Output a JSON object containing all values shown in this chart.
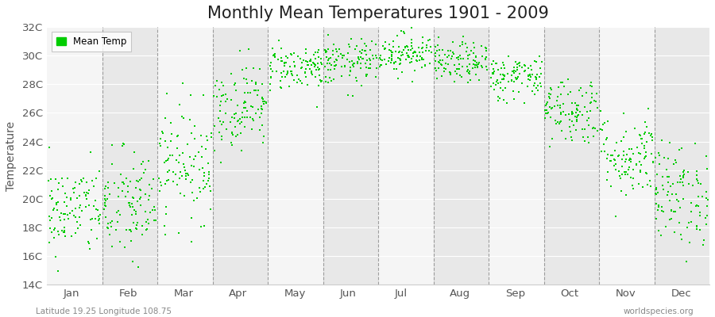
{
  "title": "Monthly Mean Temperatures 1901 - 2009",
  "ylabel": "Temperature",
  "subtitle": "Latitude 19.25 Longitude 108.75",
  "watermark": "worldspecies.org",
  "dot_color": "#00cc00",
  "bg_color": "#ffffff",
  "band_color_odd": "#f5f5f5",
  "band_color_even": "#e8e8e8",
  "ylim": [
    14,
    32
  ],
  "ytick_labels": [
    "14C",
    "16C",
    "18C",
    "20C",
    "22C",
    "24C",
    "26C",
    "28C",
    "30C",
    "32C"
  ],
  "ytick_values": [
    14,
    16,
    18,
    20,
    22,
    24,
    26,
    28,
    30,
    32
  ],
  "months": [
    "Jan",
    "Feb",
    "Mar",
    "Apr",
    "May",
    "Jun",
    "Jul",
    "Aug",
    "Sep",
    "Oct",
    "Nov",
    "Dec"
  ],
  "mean_temps": [
    19.2,
    19.5,
    22.5,
    26.5,
    29.2,
    29.5,
    30.2,
    29.5,
    28.5,
    26.2,
    23.0,
    20.3
  ],
  "std_temps": [
    1.6,
    2.0,
    2.0,
    1.5,
    0.8,
    0.8,
    0.7,
    0.7,
    0.8,
    1.2,
    1.5,
    1.8
  ],
  "n_years": 109,
  "seed": 42,
  "marker_size": 3,
  "legend_label": "Mean Temp",
  "title_fontsize": 15,
  "label_fontsize": 10,
  "tick_fontsize": 9.5
}
